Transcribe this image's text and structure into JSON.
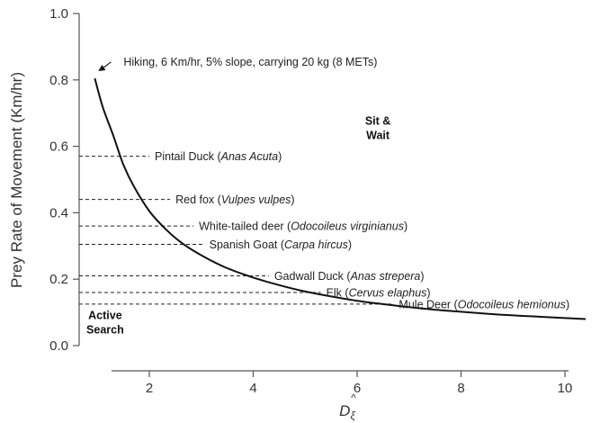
{
  "chart_data": {
    "type": "line",
    "title": "",
    "ylabel": "Prey Rate of Movement (Km/hr)",
    "xlabel_parts": {
      "base": "D",
      "sub": "ξ"
    },
    "xlim": [
      0.2,
      10.6
    ],
    "ylim": [
      0,
      1.0
    ],
    "xticks": [
      2,
      4,
      6,
      8,
      10
    ],
    "yticks": [
      0.0,
      0.2,
      0.4,
      0.6,
      0.8,
      1.0
    ],
    "ytick_labels": [
      "0.0",
      "0.2",
      "0.4",
      "0.6",
      "0.8",
      "1.0"
    ],
    "grid": false,
    "curve": {
      "x": [
        0.95,
        1.1,
        1.3,
        1.5,
        1.7,
        2.0,
        2.3,
        2.6,
        3.0,
        3.5,
        4.0,
        4.5,
        5.0,
        5.5,
        6.0,
        6.5,
        7.0,
        7.5,
        8.0,
        8.5,
        9.0,
        9.5,
        10.0,
        10.4
      ],
      "y": [
        0.805,
        0.72,
        0.635,
        0.545,
        0.48,
        0.405,
        0.353,
        0.312,
        0.272,
        0.233,
        0.205,
        0.182,
        0.163,
        0.148,
        0.135,
        0.125,
        0.116,
        0.108,
        0.102,
        0.096,
        0.091,
        0.087,
        0.083,
        0.08
      ]
    },
    "top_annotation": {
      "text": "Hiking, 6 Km/hr, 5% slope, carrying 20 kg (8 METs)",
      "x": 0.95,
      "y": 0.805
    },
    "species": [
      {
        "name": "Pintail Duck",
        "latin": "Anas Acuta",
        "y": 0.57,
        "line_end_x": 2.0
      },
      {
        "name": "Red fox",
        "latin": "Vulpes vulpes",
        "y": 0.44,
        "line_end_x": 2.4
      },
      {
        "name": "White-tailed deer",
        "latin": "Odocoileus virginianus",
        "y": 0.36,
        "line_end_x": 2.85
      },
      {
        "name": "Spanish Goat",
        "latin": "Carpa hircus",
        "y": 0.305,
        "line_end_x": 3.05
      },
      {
        "name": "Gadwall Duck",
        "latin": "Anas strepera",
        "y": 0.21,
        "line_end_x": 4.3
      },
      {
        "name": "Elk",
        "latin": "Cervus elaphus",
        "y": 0.16,
        "line_end_x": 5.3
      },
      {
        "name": "Mule Deer",
        "latin": "Odocoileus hemionus",
        "y": 0.125,
        "line_end_x": 6.7
      }
    ],
    "regions": [
      {
        "line1": "Sit &",
        "line2": "Wait",
        "x": 6.4,
        "y": 0.665
      },
      {
        "line1": "Active",
        "line2": "Search",
        "x": 1.15,
        "y": 0.08
      }
    ]
  }
}
